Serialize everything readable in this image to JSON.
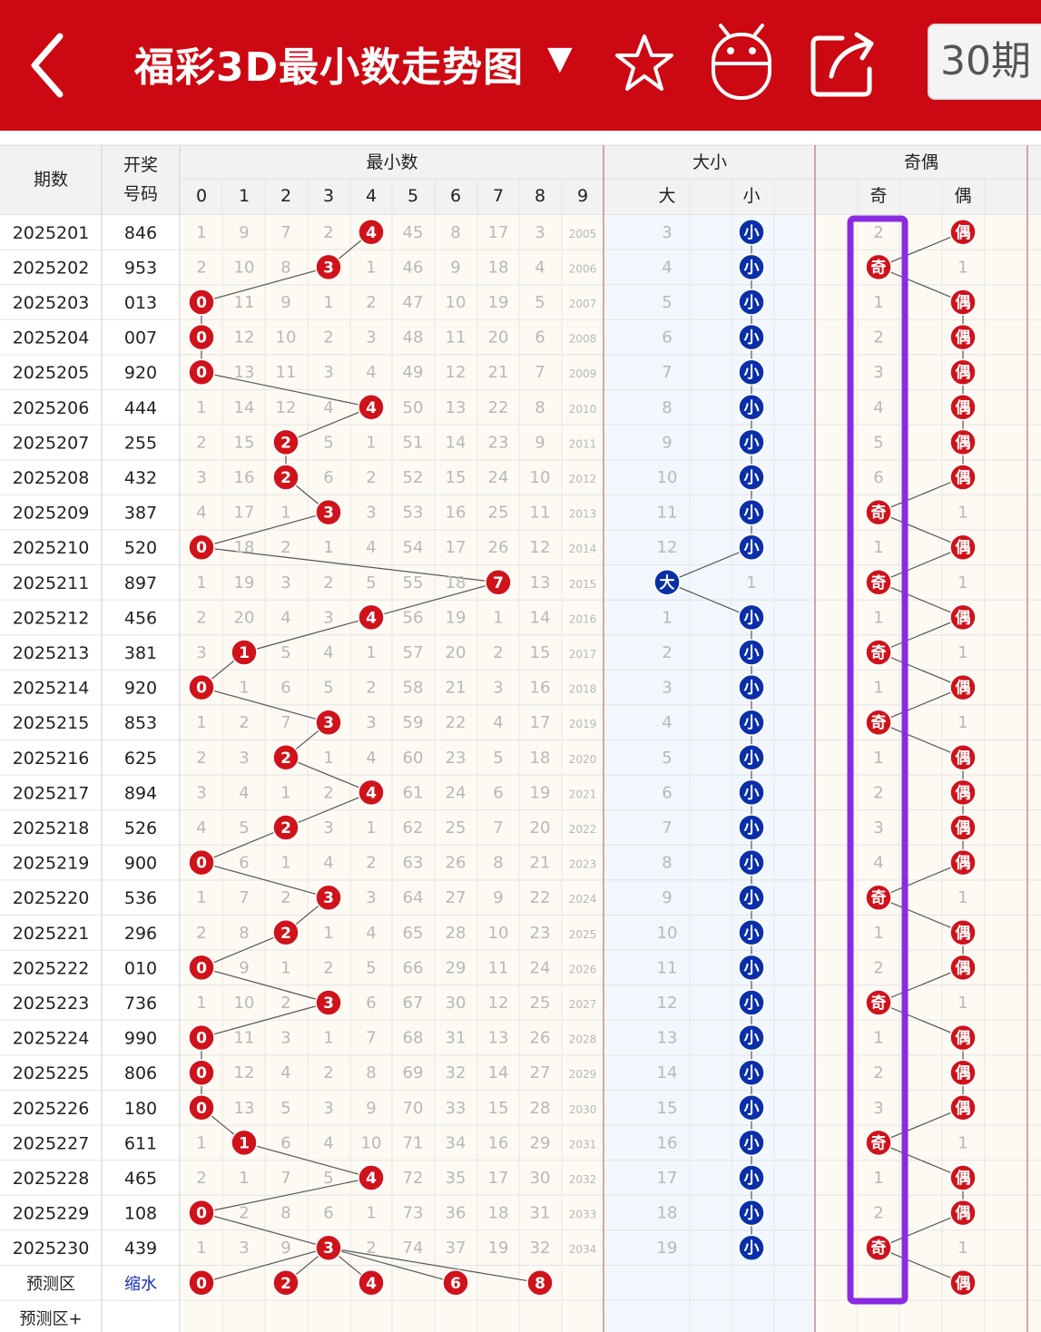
{
  "header": {
    "title": "福彩3D最小数走势图",
    "caret": "▼",
    "period_button": "30期",
    "back_icon": "back-arrow-icon",
    "star_icon": "star-icon",
    "robot_icon": "robot-icon",
    "share_icon": "share-icon",
    "bg_color": "#cc0812"
  },
  "table": {
    "col_period": "期数",
    "col_draw_line1": "开奖",
    "col_draw_line2": "号码",
    "group_min": "最小数",
    "group_size": "大小",
    "group_parity": "奇偶",
    "min_digits": [
      "0",
      "1",
      "2",
      "3",
      "4",
      "5",
      "6",
      "7",
      "8",
      "9"
    ],
    "size_labels": [
      "大",
      "小"
    ],
    "parity_labels": [
      "奇",
      "偶"
    ],
    "rows": [
      {
        "period": "2025201",
        "draw": "846",
        "min": [
          "1",
          "9",
          "7",
          "2",
          "4",
          "45",
          "8",
          "17",
          "3",
          "2005"
        ],
        "hit": 4,
        "size": [
          "3",
          "小"
        ],
        "size_hit": 1,
        "parity": [
          "2",
          "偶"
        ],
        "parity_hit": 1
      },
      {
        "period": "2025202",
        "draw": "953",
        "min": [
          "2",
          "10",
          "8",
          "3",
          "1",
          "46",
          "9",
          "18",
          "4",
          "2006"
        ],
        "hit": 3,
        "size": [
          "4",
          "小"
        ],
        "size_hit": 1,
        "parity": [
          "奇",
          "1"
        ],
        "parity_hit": 0
      },
      {
        "period": "2025203",
        "draw": "013",
        "min": [
          "0",
          "11",
          "9",
          "1",
          "2",
          "47",
          "10",
          "19",
          "5",
          "2007"
        ],
        "hit": 0,
        "size": [
          "5",
          "小"
        ],
        "size_hit": 1,
        "parity": [
          "1",
          "偶"
        ],
        "parity_hit": 1
      },
      {
        "period": "2025204",
        "draw": "007",
        "min": [
          "0",
          "12",
          "10",
          "2",
          "3",
          "48",
          "11",
          "20",
          "6",
          "2008"
        ],
        "hit": 0,
        "size": [
          "6",
          "小"
        ],
        "size_hit": 1,
        "parity": [
          "2",
          "偶"
        ],
        "parity_hit": 1
      },
      {
        "period": "2025205",
        "draw": "920",
        "min": [
          "0",
          "13",
          "11",
          "3",
          "4",
          "49",
          "12",
          "21",
          "7",
          "2009"
        ],
        "hit": 0,
        "size": [
          "7",
          "小"
        ],
        "size_hit": 1,
        "parity": [
          "3",
          "偶"
        ],
        "parity_hit": 1
      },
      {
        "period": "2025206",
        "draw": "444",
        "min": [
          "1",
          "14",
          "12",
          "4",
          "4",
          "50",
          "13",
          "22",
          "8",
          "2010"
        ],
        "hit": 4,
        "size": [
          "8",
          "小"
        ],
        "size_hit": 1,
        "parity": [
          "4",
          "偶"
        ],
        "parity_hit": 1
      },
      {
        "period": "2025207",
        "draw": "255",
        "min": [
          "2",
          "15",
          "2",
          "5",
          "1",
          "51",
          "14",
          "23",
          "9",
          "2011"
        ],
        "hit": 2,
        "size": [
          "9",
          "小"
        ],
        "size_hit": 1,
        "parity": [
          "5",
          "偶"
        ],
        "parity_hit": 1
      },
      {
        "period": "2025208",
        "draw": "432",
        "min": [
          "3",
          "16",
          "2",
          "6",
          "2",
          "52",
          "15",
          "24",
          "10",
          "2012"
        ],
        "hit": 2,
        "size": [
          "10",
          "小"
        ],
        "size_hit": 1,
        "parity": [
          "6",
          "偶"
        ],
        "parity_hit": 1
      },
      {
        "period": "2025209",
        "draw": "387",
        "min": [
          "4",
          "17",
          "1",
          "3",
          "3",
          "53",
          "16",
          "25",
          "11",
          "2013"
        ],
        "hit": 3,
        "size": [
          "11",
          "小"
        ],
        "size_hit": 1,
        "parity": [
          "奇",
          "1"
        ],
        "parity_hit": 0
      },
      {
        "period": "2025210",
        "draw": "520",
        "min": [
          "0",
          "18",
          "2",
          "1",
          "4",
          "54",
          "17",
          "26",
          "12",
          "2014"
        ],
        "hit": 0,
        "size": [
          "12",
          "小"
        ],
        "size_hit": 1,
        "parity": [
          "1",
          "偶"
        ],
        "parity_hit": 1
      },
      {
        "period": "2025211",
        "draw": "897",
        "min": [
          "1",
          "19",
          "3",
          "2",
          "5",
          "55",
          "18",
          "7",
          "13",
          "2015"
        ],
        "hit": 7,
        "size": [
          "大",
          "1"
        ],
        "size_hit": 0,
        "parity": [
          "奇",
          "1"
        ],
        "parity_hit": 0
      },
      {
        "period": "2025212",
        "draw": "456",
        "min": [
          "2",
          "20",
          "4",
          "3",
          "4",
          "56",
          "19",
          "1",
          "14",
          "2016"
        ],
        "hit": 4,
        "size": [
          "1",
          "小"
        ],
        "size_hit": 1,
        "parity": [
          "1",
          "偶"
        ],
        "parity_hit": 1
      },
      {
        "period": "2025213",
        "draw": "381",
        "min": [
          "3",
          "1",
          "5",
          "4",
          "1",
          "57",
          "20",
          "2",
          "15",
          "2017"
        ],
        "hit": 1,
        "size": [
          "2",
          "小"
        ],
        "size_hit": 1,
        "parity": [
          "奇",
          "1"
        ],
        "parity_hit": 0
      },
      {
        "period": "2025214",
        "draw": "920",
        "min": [
          "0",
          "1",
          "6",
          "5",
          "2",
          "58",
          "21",
          "3",
          "16",
          "2018"
        ],
        "hit": 0,
        "size": [
          "3",
          "小"
        ],
        "size_hit": 1,
        "parity": [
          "1",
          "偶"
        ],
        "parity_hit": 1
      },
      {
        "period": "2025215",
        "draw": "853",
        "min": [
          "1",
          "2",
          "7",
          "3",
          "3",
          "59",
          "22",
          "4",
          "17",
          "2019"
        ],
        "hit": 3,
        "size": [
          "4",
          "小"
        ],
        "size_hit": 1,
        "parity": [
          "奇",
          "1"
        ],
        "parity_hit": 0
      },
      {
        "period": "2025216",
        "draw": "625",
        "min": [
          "2",
          "3",
          "2",
          "1",
          "4",
          "60",
          "23",
          "5",
          "18",
          "2020"
        ],
        "hit": 2,
        "size": [
          "5",
          "小"
        ],
        "size_hit": 1,
        "parity": [
          "1",
          "偶"
        ],
        "parity_hit": 1
      },
      {
        "period": "2025217",
        "draw": "894",
        "min": [
          "3",
          "4",
          "1",
          "2",
          "4",
          "61",
          "24",
          "6",
          "19",
          "2021"
        ],
        "hit": 4,
        "size": [
          "6",
          "小"
        ],
        "size_hit": 1,
        "parity": [
          "2",
          "偶"
        ],
        "parity_hit": 1
      },
      {
        "period": "2025218",
        "draw": "526",
        "min": [
          "4",
          "5",
          "2",
          "3",
          "1",
          "62",
          "25",
          "7",
          "20",
          "2022"
        ],
        "hit": 2,
        "size": [
          "7",
          "小"
        ],
        "size_hit": 1,
        "parity": [
          "3",
          "偶"
        ],
        "parity_hit": 1
      },
      {
        "period": "2025219",
        "draw": "900",
        "min": [
          "0",
          "6",
          "1",
          "4",
          "2",
          "63",
          "26",
          "8",
          "21",
          "2023"
        ],
        "hit": 0,
        "size": [
          "8",
          "小"
        ],
        "size_hit": 1,
        "parity": [
          "4",
          "偶"
        ],
        "parity_hit": 1
      },
      {
        "period": "2025220",
        "draw": "536",
        "min": [
          "1",
          "7",
          "2",
          "3",
          "3",
          "64",
          "27",
          "9",
          "22",
          "2024"
        ],
        "hit": 3,
        "size": [
          "9",
          "小"
        ],
        "size_hit": 1,
        "parity": [
          "奇",
          "1"
        ],
        "parity_hit": 0
      },
      {
        "period": "2025221",
        "draw": "296",
        "min": [
          "2",
          "8",
          "2",
          "1",
          "4",
          "65",
          "28",
          "10",
          "23",
          "2025"
        ],
        "hit": 2,
        "size": [
          "10",
          "小"
        ],
        "size_hit": 1,
        "parity": [
          "1",
          "偶"
        ],
        "parity_hit": 1
      },
      {
        "period": "2025222",
        "draw": "010",
        "min": [
          "0",
          "9",
          "1",
          "2",
          "5",
          "66",
          "29",
          "11",
          "24",
          "2026"
        ],
        "hit": 0,
        "size": [
          "11",
          "小"
        ],
        "size_hit": 1,
        "parity": [
          "2",
          "偶"
        ],
        "parity_hit": 1
      },
      {
        "period": "2025223",
        "draw": "736",
        "min": [
          "1",
          "10",
          "2",
          "3",
          "6",
          "67",
          "30",
          "12",
          "25",
          "2027"
        ],
        "hit": 3,
        "size": [
          "12",
          "小"
        ],
        "size_hit": 1,
        "parity": [
          "奇",
          "1"
        ],
        "parity_hit": 0
      },
      {
        "period": "2025224",
        "draw": "990",
        "min": [
          "0",
          "11",
          "3",
          "1",
          "7",
          "68",
          "31",
          "13",
          "26",
          "2028"
        ],
        "hit": 0,
        "size": [
          "13",
          "小"
        ],
        "size_hit": 1,
        "parity": [
          "1",
          "偶"
        ],
        "parity_hit": 1
      },
      {
        "period": "2025225",
        "draw": "806",
        "min": [
          "0",
          "12",
          "4",
          "2",
          "8",
          "69",
          "32",
          "14",
          "27",
          "2029"
        ],
        "hit": 0,
        "size": [
          "14",
          "小"
        ],
        "size_hit": 1,
        "parity": [
          "2",
          "偶"
        ],
        "parity_hit": 1
      },
      {
        "period": "2025226",
        "draw": "180",
        "min": [
          "0",
          "13",
          "5",
          "3",
          "9",
          "70",
          "33",
          "15",
          "28",
          "2030"
        ],
        "hit": 0,
        "size": [
          "15",
          "小"
        ],
        "size_hit": 1,
        "parity": [
          "3",
          "偶"
        ],
        "parity_hit": 1
      },
      {
        "period": "2025227",
        "draw": "611",
        "min": [
          "1",
          "1",
          "6",
          "4",
          "10",
          "71",
          "34",
          "16",
          "29",
          "2031"
        ],
        "hit": 1,
        "size": [
          "16",
          "小"
        ],
        "size_hit": 1,
        "parity": [
          "奇",
          "1"
        ],
        "parity_hit": 0
      },
      {
        "period": "2025228",
        "draw": "465",
        "min": [
          "2",
          "1",
          "7",
          "5",
          "4",
          "72",
          "35",
          "17",
          "30",
          "2032"
        ],
        "hit": 4,
        "size": [
          "17",
          "小"
        ],
        "size_hit": 1,
        "parity": [
          "1",
          "偶"
        ],
        "parity_hit": 1
      },
      {
        "period": "2025229",
        "draw": "108",
        "min": [
          "0",
          "2",
          "8",
          "6",
          "1",
          "73",
          "36",
          "18",
          "31",
          "2033"
        ],
        "hit": 0,
        "size": [
          "18",
          "小"
        ],
        "size_hit": 1,
        "parity": [
          "2",
          "偶"
        ],
        "parity_hit": 1
      },
      {
        "period": "2025230",
        "draw": "439",
        "min": [
          "1",
          "3",
          "9",
          "3",
          "2",
          "74",
          "37",
          "19",
          "32",
          "2034"
        ],
        "hit": 3,
        "size": [
          "19",
          "小"
        ],
        "size_hit": 1,
        "parity": [
          "奇",
          "1"
        ],
        "parity_hit": 0
      }
    ],
    "prediction_row": {
      "label": "预测区",
      "draw_label": "缩水",
      "picks": [
        "0",
        "2",
        "4",
        "6",
        "8"
      ],
      "parity_pick": "偶"
    },
    "prediction_plus_label": "预测区+"
  },
  "colors": {
    "hit_red": "#d0121b",
    "hit_blue": "#0a2fa8",
    "highlight_purple": "#8a2be2"
  }
}
